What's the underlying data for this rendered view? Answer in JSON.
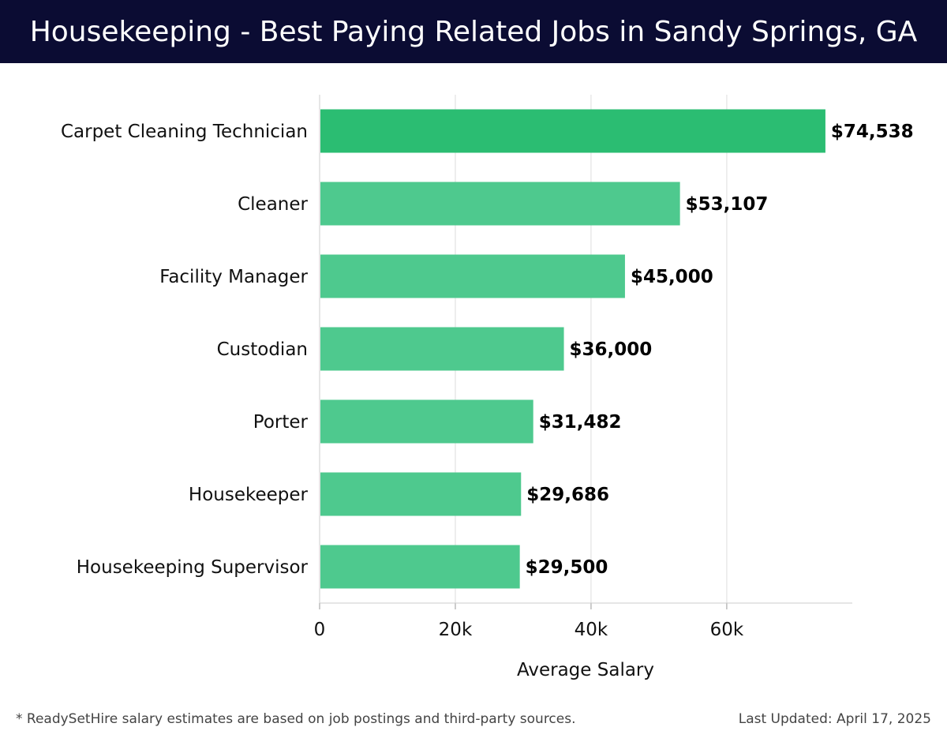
{
  "header": {
    "title": "Housekeeping - Best Paying Related Jobs in Sandy Springs, GA"
  },
  "footer": {
    "note": "* ReadySetHire salary estimates are based on job postings and third-party sources.",
    "updated": "Last Updated: April 17, 2025"
  },
  "colors": {
    "header_bg": "#0b0c33",
    "bar_top": "#2bbd72",
    "bar_other": "#4ec98e"
  },
  "chart_data": {
    "type": "bar",
    "orientation": "horizontal",
    "categories": [
      "Carpet Cleaning Technician",
      "Cleaner",
      "Facility Manager",
      "Custodian",
      "Porter",
      "Housekeeper",
      "Housekeeping Supervisor"
    ],
    "values": [
      74538,
      53107,
      45000,
      36000,
      31482,
      29686,
      29500
    ],
    "data_labels": [
      "$74,538",
      "$53,107",
      "$45,000",
      "$36,000",
      "$31,482",
      "$29,686",
      "$29,500"
    ],
    "xlabel": "Average Salary",
    "ylabel": "",
    "xlim": [
      0,
      78500
    ],
    "xticks": [
      0,
      20000,
      40000,
      60000
    ],
    "xtick_labels": [
      "0",
      "20k",
      "40k",
      "60k"
    ],
    "grid": "vertical"
  }
}
